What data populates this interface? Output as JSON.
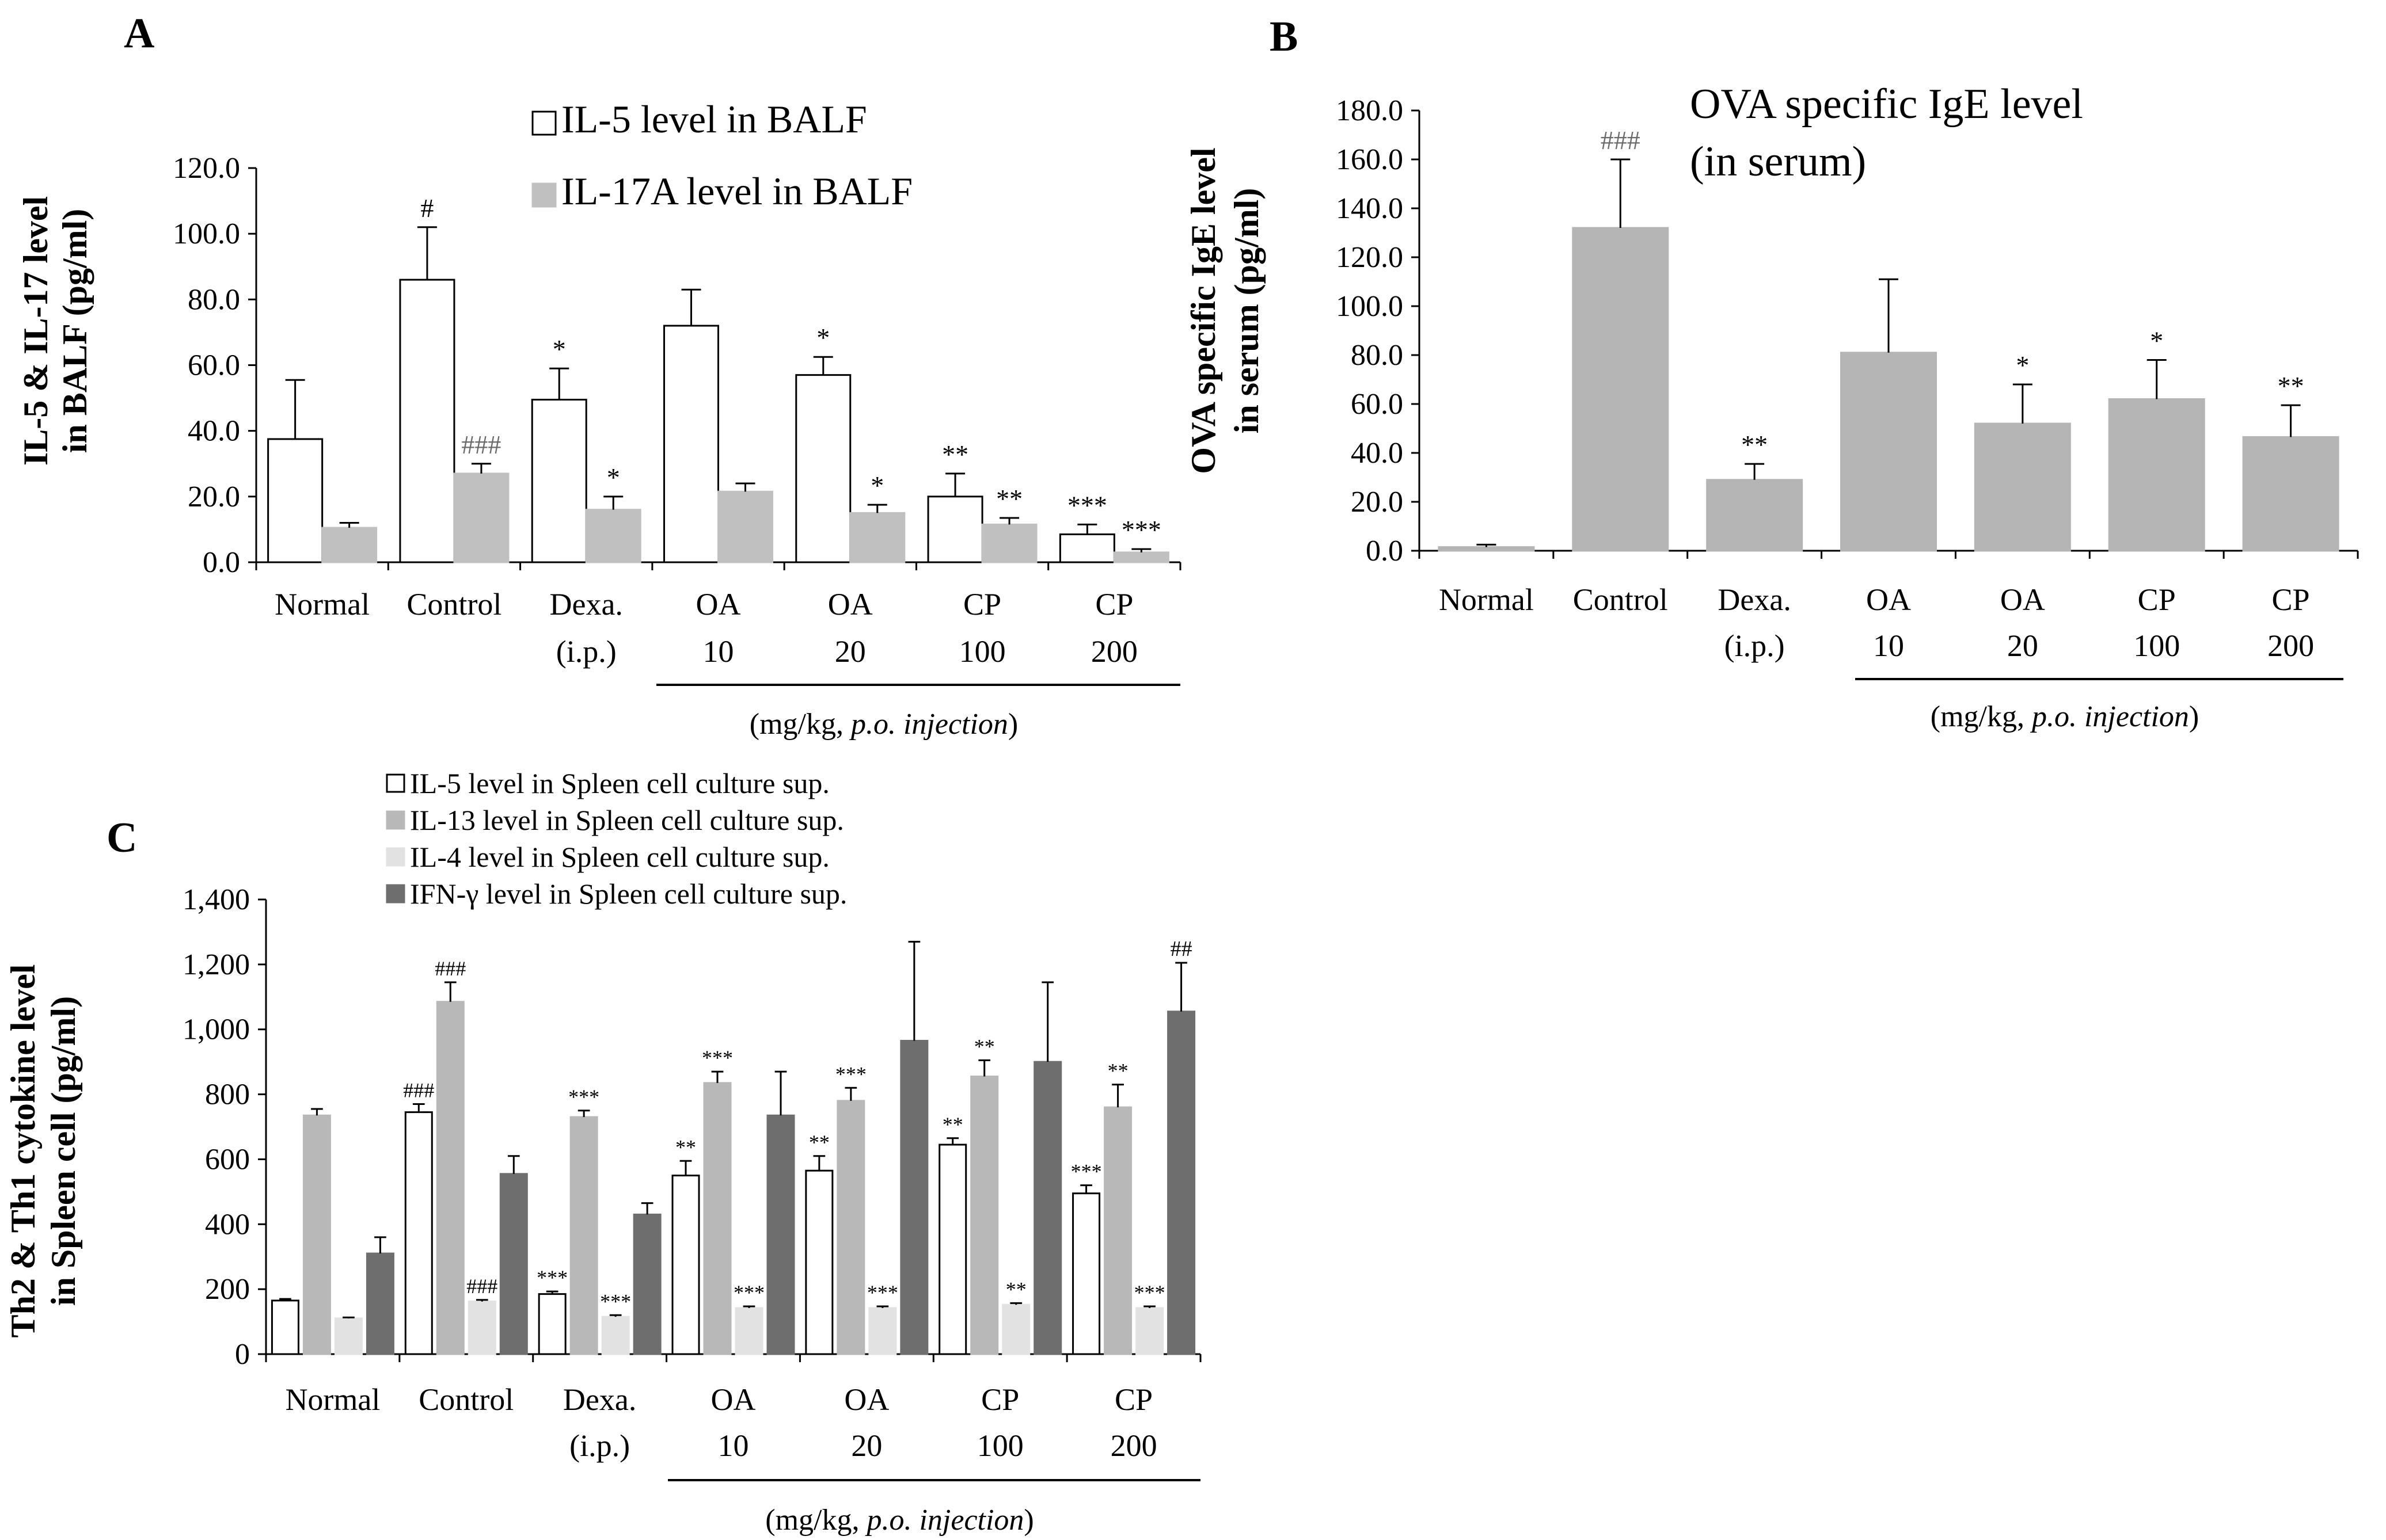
{
  "chart_data": [
    {
      "panel": "A",
      "type": "bar",
      "categories": [
        "Normal",
        "Control",
        "Dexa.",
        "OA",
        "OA",
        "CP",
        "CP"
      ],
      "category_sublabels": [
        "",
        "",
        "(i.p.)",
        "10",
        "20",
        "100",
        "200"
      ],
      "group_note_prefix": "(mg/kg,",
      "group_note_italic": "p.o. injection",
      "group_note_suffix": ")",
      "ylabel": [
        "IL-5 & IL-17 level",
        "in BALF (pg/ml)"
      ],
      "ylim": [
        0,
        120
      ],
      "yticks": [
        "0.0",
        "20.0",
        "40.0",
        "60.0",
        "80.0",
        "100.0",
        "120.0"
      ],
      "series": [
        {
          "name": "IL-5 level in BALF",
          "color": "#ffffff",
          "values": [
            37.5,
            86,
            49.5,
            72,
            57,
            20,
            8.5
          ],
          "errors": [
            18,
            16,
            9.5,
            11,
            5.5,
            7,
            3
          ],
          "sig": [
            "",
            "#",
            "*",
            "",
            "*",
            "**",
            "***"
          ]
        },
        {
          "name": "IL-17A level in BALF",
          "color": "#c0c0c0",
          "values": [
            10.5,
            27,
            16,
            21.5,
            15,
            11.5,
            3
          ],
          "errors": [
            1.5,
            3,
            4,
            2.5,
            2.5,
            2,
            1
          ],
          "sig": [
            "",
            "###",
            "*",
            "",
            "*",
            "**",
            "***"
          ]
        }
      ]
    },
    {
      "panel": "B",
      "type": "bar",
      "title": [
        "OVA specific IgE level",
        "(in serum)"
      ],
      "categories": [
        "Normal",
        "Control",
        "Dexa.",
        "OA",
        "OA",
        "CP",
        "CP"
      ],
      "category_sublabels": [
        "",
        "",
        "(i.p.)",
        "10",
        "20",
        "100",
        "200"
      ],
      "group_note_prefix": "(mg/kg,",
      "group_note_italic": "p.o. injection",
      "group_note_suffix": ")",
      "ylabel": [
        "OVA specific IgE level",
        "in serum (pg/ml)"
      ],
      "ylim": [
        0,
        180
      ],
      "yticks": [
        "0.0",
        "20.0",
        "40.0",
        "60.0",
        "80.0",
        "100.0",
        "120.0",
        "140.0",
        "160.0",
        "180.0"
      ],
      "series": [
        {
          "name": "OVA specific IgE",
          "color": "#b5b5b5",
          "values": [
            1.5,
            132,
            29,
            81,
            52,
            62,
            46.5
          ],
          "errors": [
            1,
            28,
            6.5,
            30,
            16,
            16,
            13
          ],
          "sig": [
            "",
            "###",
            "**",
            "",
            "*",
            "*",
            "**"
          ]
        }
      ]
    },
    {
      "panel": "C",
      "type": "bar",
      "categories": [
        "Normal",
        "Control",
        "Dexa.",
        "OA",
        "OA",
        "CP",
        "CP"
      ],
      "category_sublabels": [
        "",
        "",
        "(i.p.)",
        "10",
        "20",
        "100",
        "200"
      ],
      "group_note_prefix": "(mg/kg,",
      "group_note_italic": "p.o. injection",
      "group_note_suffix": ")",
      "ylabel": [
        "Th2 & Th1 cytokine level",
        "in Spleen cell (pg/ml)"
      ],
      "ylim": [
        0,
        1400
      ],
      "yticks": [
        "0",
        "200",
        "400",
        "600",
        "800",
        "1,000",
        "1,200",
        "1,400"
      ],
      "series": [
        {
          "name": "IL-5 level in Spleen cell culture sup.",
          "color": "#ffffff",
          "values": [
            165,
            745,
            185,
            550,
            565,
            645,
            495
          ],
          "errors": [
            5,
            25,
            8,
            45,
            45,
            20,
            25
          ],
          "sig": [
            "",
            "###",
            "***",
            "**",
            "**",
            "**",
            "***"
          ]
        },
        {
          "name": "IL-13 level in Spleen cell culture sup.",
          "color": "#b8b8b8",
          "values": [
            735,
            1085,
            730,
            835,
            780,
            855,
            760
          ],
          "errors": [
            20,
            60,
            20,
            35,
            40,
            50,
            70
          ],
          "sig": [
            "",
            "###",
            "***",
            "***",
            "***",
            "**",
            "**"
          ]
        },
        {
          "name": "IL-4 level in Spleen cell culture sup.",
          "color": "#e2e2e2",
          "values": [
            110,
            162,
            115,
            142,
            142,
            152,
            142
          ],
          "errors": [
            3,
            5,
            5,
            5,
            5,
            5,
            5
          ],
          "sig": [
            "",
            "###",
            "***",
            "***",
            "***",
            "**",
            "***"
          ]
        },
        {
          "name": "IFN-γ level in Spleen cell culture sup.",
          "color": "#6e6e6e",
          "values": [
            310,
            555,
            430,
            735,
            965,
            900,
            1055
          ],
          "errors": [
            50,
            55,
            35,
            135,
            305,
            245,
            150
          ],
          "sig": [
            "",
            "",
            "",
            "",
            "",
            "",
            "##"
          ]
        }
      ]
    }
  ]
}
